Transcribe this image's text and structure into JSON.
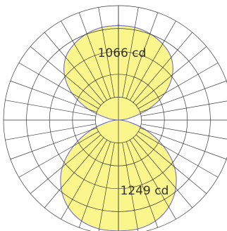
{
  "chart_data": {
    "type": "polar",
    "grid": true,
    "angle_step_deg": 10,
    "radial_rings": 5,
    "r_max_cd": 1249,
    "series": [
      {
        "angles_deg": [
          0,
          10,
          20,
          30,
          40,
          50,
          60,
          70,
          80,
          90
        ],
        "values": [
          1066,
          1060,
          1035,
          990,
          920,
          790,
          600,
          360,
          130,
          15
        ]
      },
      {
        "angles_deg": [
          0,
          10,
          20,
          30,
          40,
          50,
          60,
          70,
          80,
          90
        ],
        "values": [
          1249,
          1245,
          1210,
          1130,
          1000,
          820,
          580,
          330,
          120,
          15
        ]
      }
    ],
    "annotations": [
      {
        "text": "1066 cd",
        "series_index": 0
      },
      {
        "text": "1249 cd",
        "series_index": 1
      }
    ],
    "colors": {
      "fill": "#fbf57c",
      "outline": "#6e6ec8",
      "grid": "#3a3a3a"
    }
  }
}
